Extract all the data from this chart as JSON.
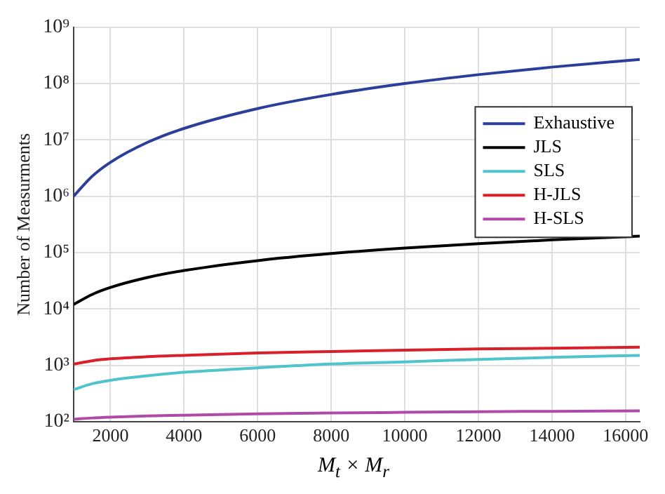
{
  "chart_data": {
    "type": "line",
    "xlabel": "M$_{t}$ × M$_{r}$",
    "ylabel": "Number of Measurments",
    "x": [
      1000,
      1500,
      2000,
      3000,
      4000,
      6000,
      8000,
      10000,
      12000,
      14000,
      16384
    ],
    "series": [
      {
        "name": "Exhaustive",
        "color": "#2b3f9a",
        "values": [
          1000000,
          2250000,
          4000000,
          9000000,
          16000000,
          36000000,
          64000000,
          100000000,
          144000000,
          196000000,
          268000000
        ]
      },
      {
        "name": "JLS",
        "color": "#000000",
        "values": [
          12000,
          18000,
          24000,
          36000,
          48000,
          72000,
          96000,
          120000,
          144000,
          168000,
          196000
        ]
      },
      {
        "name": "SLS",
        "color": "#4fc4cc",
        "values": [
          370,
          470,
          540,
          650,
          750,
          900,
          1050,
          1150,
          1270,
          1380,
          1500
        ]
      },
      {
        "name": "H-JLS",
        "color": "#d9202a",
        "values": [
          1050,
          1200,
          1300,
          1420,
          1500,
          1650,
          1750,
          1850,
          1950,
          2000,
          2100
        ]
      },
      {
        "name": "H-SLS",
        "color": "#b04aa8",
        "values": [
          110,
          116,
          120,
          126,
          130,
          137,
          142,
          146,
          150,
          152,
          155
        ]
      }
    ],
    "xlim": [
      1000,
      16384
    ],
    "xticks": [
      2000,
      4000,
      6000,
      8000,
      10000,
      12000,
      14000,
      16000
    ],
    "ylim": [
      100,
      1000000000
    ],
    "yticks": [
      {
        "value": 100,
        "label": "10²"
      },
      {
        "value": 1000,
        "label": "10³"
      },
      {
        "value": 10000,
        "label": "10⁴"
      },
      {
        "value": 100000,
        "label": "10⁵"
      },
      {
        "value": 1000000,
        "label": "10⁶"
      },
      {
        "value": 10000000,
        "label": "10⁷"
      },
      {
        "value": 100000000,
        "label": "10⁸"
      },
      {
        "value": 1000000000,
        "label": "10⁹"
      }
    ],
    "log": "y",
    "grid": true,
    "legend": "right",
    "marker": "none",
    "line_style": "solid"
  }
}
